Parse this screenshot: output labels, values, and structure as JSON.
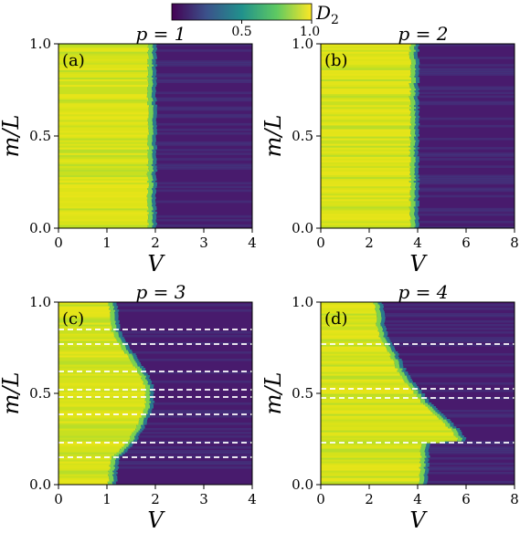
{
  "chart_data": [
    {
      "type": "heatmap",
      "panel_label": "(a)",
      "title": "p = 1",
      "xlabel": "V",
      "ylabel": "m/L",
      "xlim": [
        0,
        4
      ],
      "ylim": [
        0,
        1
      ],
      "xticks": [
        "0",
        "1",
        "2",
        "3",
        "4"
      ],
      "yticks": [
        "0.0",
        "0.5",
        "1.0"
      ],
      "colorscale": "viridis",
      "value_name": "D2",
      "transition_boundary": {
        "m_over_L": [
          0.0,
          1.0
        ],
        "V": [
          2.0,
          2.0
        ]
      },
      "dashed_lines_m_over_L": []
    },
    {
      "type": "heatmap",
      "panel_label": "(b)",
      "title": "p = 2",
      "xlabel": "V",
      "ylabel": "m/L",
      "xlim": [
        0,
        8
      ],
      "ylim": [
        0,
        1
      ],
      "xticks": [
        "0",
        "2",
        "4",
        "6",
        "8"
      ],
      "yticks": [
        "0.0",
        "0.5",
        "1.0"
      ],
      "colorscale": "viridis",
      "value_name": "D2",
      "transition_boundary": {
        "m_over_L": [
          0.0,
          1.0
        ],
        "V": [
          4.0,
          4.0
        ]
      },
      "dashed_lines_m_over_L": []
    },
    {
      "type": "heatmap",
      "panel_label": "(c)",
      "title": "p = 3",
      "xlabel": "V",
      "ylabel": "m/L",
      "xlim": [
        0,
        4
      ],
      "ylim": [
        0,
        1
      ],
      "xticks": [
        "0",
        "1",
        "2",
        "3",
        "4"
      ],
      "yticks": [
        "0.0",
        "0.5",
        "1.0"
      ],
      "colorscale": "viridis",
      "value_name": "D2",
      "transition_boundary": {
        "m_over_L": [
          0.0,
          0.08,
          0.15,
          0.2,
          0.25,
          0.3,
          0.35,
          0.4,
          0.45,
          0.5,
          0.55,
          0.6,
          0.65,
          0.7,
          0.75,
          0.8,
          0.85,
          0.92,
          1.0
        ],
        "V": [
          1.18,
          1.2,
          1.25,
          1.45,
          1.6,
          1.72,
          1.82,
          1.9,
          1.95,
          1.96,
          1.93,
          1.85,
          1.72,
          1.6,
          1.45,
          1.35,
          1.25,
          1.22,
          1.2
        ]
      },
      "dashed_lines_m_over_L": [
        0.15,
        0.23,
        0.385,
        0.48,
        0.52,
        0.62,
        0.77,
        0.85
      ]
    },
    {
      "type": "heatmap",
      "panel_label": "(d)",
      "title": "p = 4",
      "xlabel": "V",
      "ylabel": "m/L",
      "xlim": [
        0,
        8
      ],
      "ylim": [
        0,
        1
      ],
      "xticks": [
        "0",
        "2",
        "4",
        "6",
        "8"
      ],
      "yticks": [
        "0.0",
        "0.5",
        "1.0"
      ],
      "colorscale": "viridis",
      "value_name": "D2",
      "transition_boundary": {
        "m_over_L": [
          0.0,
          0.1,
          0.2,
          0.23,
          0.24,
          0.3,
          0.35,
          0.4,
          0.45,
          0.5,
          0.55,
          0.6,
          0.7,
          0.76,
          0.8,
          0.9,
          1.0
        ],
        "V": [
          4.35,
          4.4,
          4.45,
          4.5,
          6.0,
          5.7,
          5.3,
          4.9,
          4.5,
          4.2,
          3.9,
          3.6,
          3.2,
          3.0,
          2.75,
          2.6,
          2.5
        ]
      },
      "dashed_lines_m_over_L": [
        0.23,
        0.475,
        0.525,
        0.77
      ]
    }
  ],
  "colorbar": {
    "label": "D2",
    "range": [
      0,
      1
    ],
    "ticks": [
      {
        "value": 0.5,
        "label": "0.5"
      },
      {
        "value": 1.0,
        "label": "1.0"
      }
    ],
    "colors": [
      "#440154",
      "#3b528b",
      "#21918c",
      "#5ec962",
      "#fde725"
    ]
  }
}
